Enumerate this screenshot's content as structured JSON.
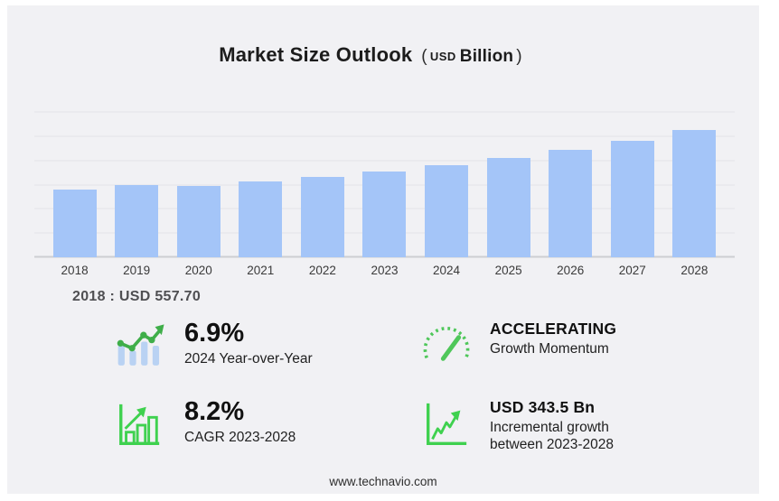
{
  "colors": {
    "frame_bg": "#ffffff",
    "panel_bg": "#f1f1f4",
    "bar_fill": "#a4c5f8",
    "grid_line": "#e4e4e8",
    "baseline": "#cdced2",
    "accent_green": "#3fc24f",
    "icon_bar_blue": "#b9d2f3",
    "title_text": "#1c1c1c",
    "muted_text": "#4f4f52"
  },
  "title": {
    "main": "Market Size Outlook",
    "open_paren": "(",
    "currency": "USD",
    "unit": "Billion",
    "close_paren": ")"
  },
  "chart_data": {
    "type": "bar",
    "title": "Market Size Outlook (USD Billion)",
    "categories": [
      "2018",
      "2019",
      "2020",
      "2021",
      "2022",
      "2023",
      "2024",
      "2025",
      "2026",
      "2027",
      "2028"
    ],
    "values": [
      557.7,
      594,
      588,
      626,
      662,
      710.6,
      759.6,
      816.6,
      883.6,
      962.2,
      1054.1
    ],
    "unit": "USD Billion",
    "xlabel": "",
    "ylabel": "",
    "ylim": [
      0,
      1200
    ],
    "gridline_step": 200,
    "grid": true,
    "legend": "none",
    "bar_color": "#a4c5f8"
  },
  "tooltip": {
    "text": "2018 : USD  557.70"
  },
  "stats": [
    {
      "icon": "bar-trend-icon",
      "value": "6.9%",
      "label": "2024 Year-over-Year"
    },
    {
      "icon": "gauge-icon",
      "value": "ACCELERATING",
      "label": "Growth Momentum"
    },
    {
      "icon": "bar-growth-icon",
      "value": "8.2%",
      "label": "CAGR 2023-2028"
    },
    {
      "icon": "line-growth-icon",
      "value": "USD 343.5 Bn",
      "label_line1": "Incremental growth",
      "label_line2": "between 2023-2028"
    }
  ],
  "footer": {
    "url": "www.technavio.com"
  }
}
